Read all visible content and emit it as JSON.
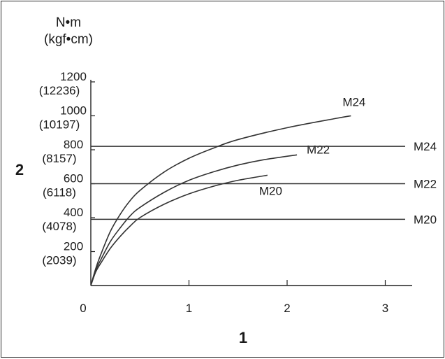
{
  "chart_data": {
    "type": "line",
    "title": "",
    "xlabel": "1",
    "ylabel": "2",
    "y_unit": {
      "line1": "N•m",
      "line2": "(kgf•cm)"
    },
    "xlim": [
      0,
      3.25
    ],
    "ylim": [
      0,
      1200
    ],
    "x_ticks": [
      {
        "value": 0,
        "label": "0"
      },
      {
        "value": 1,
        "label": "1"
      },
      {
        "value": 2,
        "label": "2"
      },
      {
        "value": 3,
        "label": "3"
      }
    ],
    "y_ticks": [
      {
        "value": 200,
        "label": "200",
        "sublabel": "(2039)"
      },
      {
        "value": 400,
        "label": "400",
        "sublabel": "(4078)"
      },
      {
        "value": 600,
        "label": "600",
        "sublabel": "(6118)"
      },
      {
        "value": 800,
        "label": "800",
        "sublabel": "(8157)"
      },
      {
        "value": 1000,
        "label": "1000",
        "sublabel": "(10197)"
      },
      {
        "value": 1200,
        "label": "1200",
        "sublabel": "(12236)"
      }
    ],
    "series": [
      {
        "name": "M24",
        "kind": "curve",
        "x": [
          0,
          0.05,
          0.1,
          0.2,
          0.3,
          0.4,
          0.5,
          0.75,
          1.0,
          1.25,
          1.5,
          2.0,
          2.5,
          2.65
        ],
        "y": [
          0,
          100,
          180,
          320,
          420,
          500,
          560,
          670,
          750,
          810,
          860,
          930,
          985,
          1000
        ]
      },
      {
        "name": "M22",
        "kind": "curve",
        "x": [
          0,
          0.05,
          0.1,
          0.2,
          0.3,
          0.4,
          0.5,
          0.75,
          1.0,
          1.25,
          1.5,
          1.75,
          2.1
        ],
        "y": [
          0,
          90,
          150,
          260,
          340,
          410,
          460,
          550,
          620,
          670,
          710,
          740,
          770
        ]
      },
      {
        "name": "M20",
        "kind": "curve",
        "x": [
          0,
          0.05,
          0.1,
          0.2,
          0.3,
          0.4,
          0.5,
          0.75,
          1.0,
          1.25,
          1.5,
          1.8
        ],
        "y": [
          0,
          80,
          130,
          220,
          290,
          350,
          400,
          480,
          540,
          585,
          620,
          650
        ]
      },
      {
        "name": "M24",
        "kind": "hline",
        "y": 820
      },
      {
        "name": "M22",
        "kind": "hline",
        "y": 600
      },
      {
        "name": "M20",
        "kind": "hline",
        "y": 390
      }
    ]
  }
}
